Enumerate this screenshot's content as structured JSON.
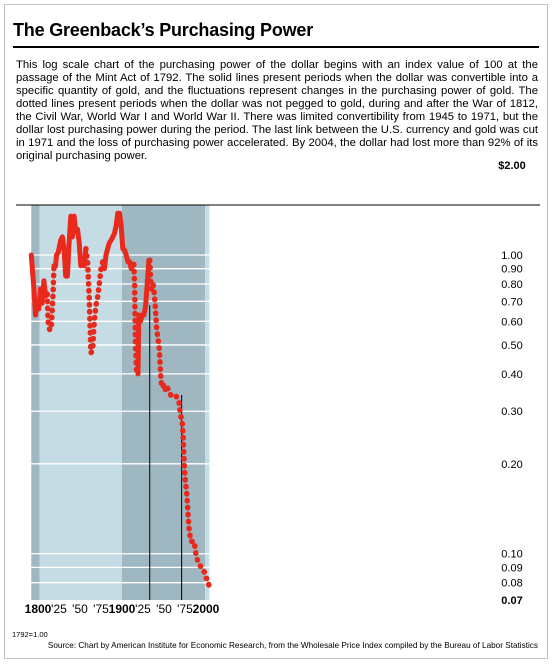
{
  "title": "The Greenback’s Purchasing Power",
  "description": "This log scale chart of the purchasing power of the dollar begins with an index value of 100 at the passage of the Mint Act of 1792. The solid lines present periods when the dollar was convertible into a specific quantity of gold, and the fluctuations represent changes in the purchasing power of gold. The dotted lines present periods when the dollar was not pegged to gold, during and after the War of 1812, the Civil War, World War I and World War II. There was limited convertibility from 1945 to 1971, but the dollar lost purchasing power during the period. The last link between the U.S. currency and gold was cut in 1971 and the loss of purchasing power accelerated. By 2004, the dollar had lost more than 92% of its original purchasing power.",
  "base_note": "1792=1.00",
  "source": "Source: Chart by American Institute for Economic Research, from the Wholesale Price Index compiled by the Bureau of Labor Statistics",
  "colors": {
    "line": "#e8291c",
    "band_dark": "#9fb7c1",
    "band_light": "#c5dce4",
    "grid": "#ffffff",
    "frame": "#b9c4cb"
  },
  "chart_data": {
    "type": "line",
    "scale": "log",
    "xlim": [
      1792,
      2008
    ],
    "ylim": [
      0.07,
      2.0
    ],
    "y_ticks": [
      {
        "value": 2.0,
        "label": "$2.00",
        "bold": true
      },
      {
        "value": 1.0,
        "label": "1.00"
      },
      {
        "value": 0.9,
        "label": "0.90"
      },
      {
        "value": 0.8,
        "label": "0.80"
      },
      {
        "value": 0.7,
        "label": "0.70"
      },
      {
        "value": 0.6,
        "label": "0.60"
      },
      {
        "value": 0.5,
        "label": "0.50"
      },
      {
        "value": 0.4,
        "label": "0.40"
      },
      {
        "value": 0.3,
        "label": "0.30"
      },
      {
        "value": 0.2,
        "label": "0.20"
      },
      {
        "value": 0.1,
        "label": "0.10"
      },
      {
        "value": 0.09,
        "label": "0.09"
      },
      {
        "value": 0.08,
        "label": "0.08"
      },
      {
        "value": 0.07,
        "label": "0.07",
        "bold": true
      }
    ],
    "x_ticks": [
      {
        "value": 1800,
        "label": "1800",
        "bold": true
      },
      {
        "value": 1825,
        "label": "'25"
      },
      {
        "value": 1850,
        "label": "'50"
      },
      {
        "value": 1875,
        "label": "'75"
      },
      {
        "value": 1900,
        "label": "1900",
        "bold": true
      },
      {
        "value": 1925,
        "label": "'25"
      },
      {
        "value": 1950,
        "label": "'50"
      },
      {
        "value": 1975,
        "label": "'75"
      },
      {
        "value": 2000,
        "label": "2000",
        "bold": true
      }
    ],
    "bands": [
      {
        "from": 1792,
        "to": 1802,
        "shade": "dark"
      },
      {
        "from": 1802,
        "to": 1900,
        "shade": "light"
      },
      {
        "from": 1900,
        "to": 1999,
        "shade": "dark"
      },
      {
        "from": 1999,
        "to": 2004,
        "shade": "light"
      }
    ],
    "markers": [
      1933,
      1971
    ],
    "segments": [
      {
        "style": "solid",
        "points": [
          [
            1792,
            1.0
          ],
          [
            1795,
            0.78
          ],
          [
            1797,
            0.63
          ],
          [
            1799,
            0.7
          ],
          [
            1801,
            0.66
          ],
          [
            1803,
            0.77
          ],
          [
            1805,
            0.69
          ],
          [
            1807,
            0.82
          ],
          [
            1809,
            0.73
          ],
          [
            1811,
            0.74
          ]
        ]
      },
      {
        "style": "dotted",
        "points": [
          [
            1811,
            0.74
          ],
          [
            1812,
            0.6
          ],
          [
            1814,
            0.56
          ],
          [
            1816,
            0.58
          ],
          [
            1818,
            0.75
          ],
          [
            1819,
            0.92
          ]
        ]
      },
      {
        "style": "solid",
        "points": [
          [
            1819,
            0.92
          ],
          [
            1821,
            0.92
          ],
          [
            1822,
            1.0
          ],
          [
            1824,
            1.02
          ],
          [
            1825,
            1.05
          ],
          [
            1827,
            1.12
          ],
          [
            1829,
            1.15
          ],
          [
            1831,
            1.05
          ],
          [
            1833,
            0.85
          ],
          [
            1835,
            0.85
          ],
          [
            1837,
            1.1
          ],
          [
            1839,
            1.35
          ],
          [
            1841,
            1.15
          ],
          [
            1843,
            1.35
          ],
          [
            1845,
            1.2
          ],
          [
            1847,
            1.22
          ],
          [
            1849,
            1.1
          ],
          [
            1851,
            0.92
          ],
          [
            1853,
            0.95
          ],
          [
            1855,
            0.92
          ],
          [
            1857,
            1.05
          ]
        ]
      },
      {
        "style": "dotted",
        "points": [
          [
            1857,
            1.05
          ],
          [
            1859,
            0.95
          ],
          [
            1861,
            0.72
          ],
          [
            1863,
            0.47
          ],
          [
            1865,
            0.48
          ],
          [
            1867,
            0.6
          ],
          [
            1869,
            0.68
          ],
          [
            1871,
            0.72
          ],
          [
            1873,
            0.8
          ],
          [
            1875,
            0.9
          ],
          [
            1877,
            0.95
          ]
        ]
      },
      {
        "style": "solid",
        "points": [
          [
            1877,
            0.95
          ],
          [
            1879,
            0.9
          ],
          [
            1881,
            1.0
          ],
          [
            1883,
            1.05
          ],
          [
            1885,
            1.1
          ],
          [
            1887,
            1.12
          ],
          [
            1889,
            1.15
          ],
          [
            1891,
            1.18
          ],
          [
            1893,
            1.25
          ],
          [
            1895,
            1.38
          ],
          [
            1897,
            1.38
          ],
          [
            1899,
            1.25
          ],
          [
            1901,
            1.05
          ],
          [
            1903,
            1.04
          ],
          [
            1905,
            1.0
          ],
          [
            1907,
            0.95
          ],
          [
            1909,
            0.95
          ],
          [
            1911,
            0.9
          ],
          [
            1913,
            0.93
          ],
          [
            1914,
            0.93
          ]
        ]
      },
      {
        "style": "dotted",
        "points": [
          [
            1914,
            0.93
          ],
          [
            1915,
            0.8
          ],
          [
            1916,
            0.52
          ],
          [
            1917,
            0.42
          ],
          [
            1918,
            0.4
          ],
          [
            1919,
            0.4
          ]
        ]
      },
      {
        "style": "solid",
        "points": [
          [
            1919,
            0.4
          ],
          [
            1920,
            0.63
          ],
          [
            1922,
            0.6
          ],
          [
            1924,
            0.63
          ],
          [
            1926,
            0.63
          ],
          [
            1928,
            0.67
          ],
          [
            1930,
            0.8
          ],
          [
            1932,
            0.96
          ],
          [
            1933,
            0.96
          ]
        ]
      },
      {
        "style": "dotted",
        "points": [
          [
            1933,
            0.96
          ],
          [
            1934,
            0.84
          ],
          [
            1935,
            0.77
          ],
          [
            1937,
            0.8
          ],
          [
            1938,
            0.77
          ],
          [
            1940,
            0.65
          ],
          [
            1941,
            0.58
          ],
          [
            1943,
            0.52
          ],
          [
            1944,
            0.5
          ],
          [
            1945,
            0.45
          ],
          [
            1946,
            0.4
          ],
          [
            1947,
            0.37
          ],
          [
            1948,
            0.36
          ],
          [
            1950,
            0.37
          ],
          [
            1952,
            0.35
          ],
          [
            1954,
            0.36
          ],
          [
            1956,
            0.35
          ],
          [
            1958,
            0.34
          ],
          [
            1960,
            0.34
          ],
          [
            1962,
            0.34
          ],
          [
            1964,
            0.34
          ],
          [
            1966,
            0.33
          ],
          [
            1968,
            0.32
          ],
          [
            1969,
            0.3
          ],
          [
            1970,
            0.29
          ],
          [
            1971,
            0.28
          ],
          [
            1972,
            0.27
          ],
          [
            1973,
            0.24
          ],
          [
            1974,
            0.2
          ],
          [
            1975,
            0.18
          ],
          [
            1977,
            0.16
          ],
          [
            1979,
            0.13
          ],
          [
            1980,
            0.12
          ],
          [
            1982,
            0.11
          ],
          [
            1984,
            0.11
          ],
          [
            1986,
            0.11
          ],
          [
            1988,
            0.1
          ],
          [
            1990,
            0.095
          ],
          [
            1992,
            0.093
          ],
          [
            1994,
            0.09
          ],
          [
            1996,
            0.088
          ],
          [
            1998,
            0.087
          ],
          [
            2000,
            0.083
          ],
          [
            2002,
            0.082
          ],
          [
            2004,
            0.077
          ]
        ]
      }
    ]
  }
}
